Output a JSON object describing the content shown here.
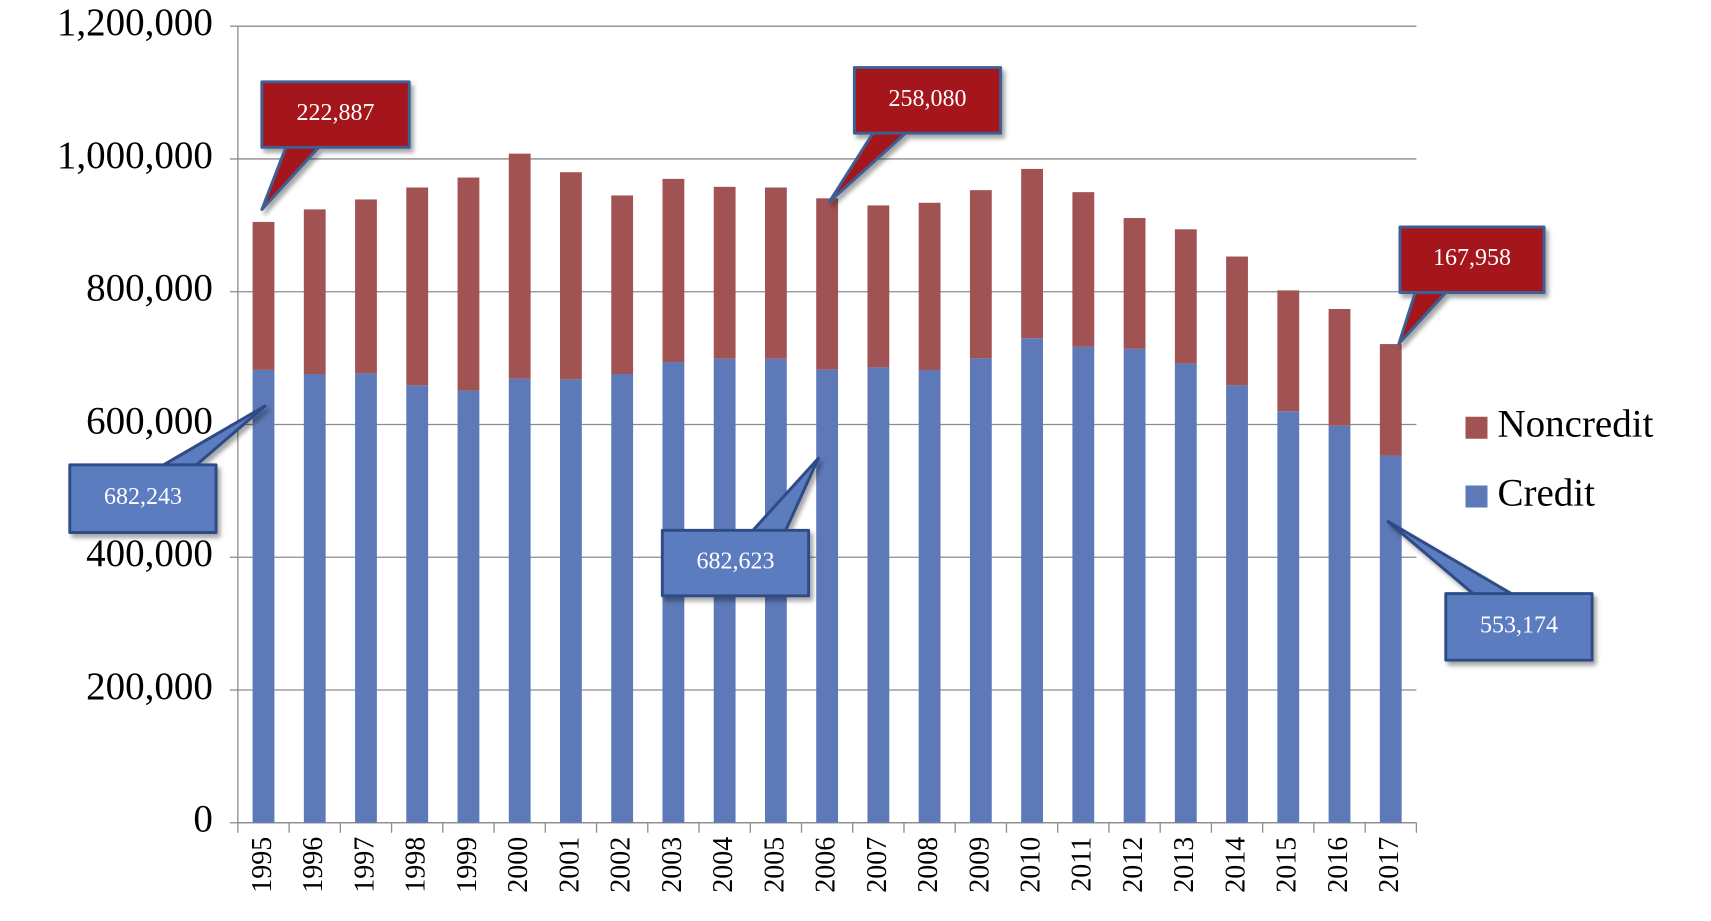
{
  "chart_data": {
    "type": "stacked_bar",
    "categories": [
      "1995",
      "1996",
      "1997",
      "1998",
      "1999",
      "2000",
      "2001",
      "2002",
      "2003",
      "2004",
      "2005",
      "2006",
      "2007",
      "2008",
      "2009",
      "2010",
      "2011",
      "2012",
      "2013",
      "2014",
      "2015",
      "2016",
      "2017"
    ],
    "series": [
      {
        "name": "Credit",
        "color": "#5e79b8",
        "values": [
          682243,
          676000,
          677000,
          659000,
          651000,
          669000,
          668000,
          676000,
          694000,
          699000,
          699000,
          682623,
          686000,
          682000,
          700000,
          730000,
          717000,
          714000,
          692000,
          659000,
          620000,
          598000,
          553174
        ],
        "value_labels": [
          "682,243",
          null,
          null,
          null,
          null,
          null,
          null,
          null,
          null,
          null,
          null,
          "682,623",
          null,
          null,
          null,
          null,
          null,
          null,
          null,
          null,
          null,
          null,
          "553,174"
        ]
      },
      {
        "name": "Noncredit",
        "color": "#a05352",
        "values": [
          222887,
          248000,
          262000,
          298000,
          321000,
          339000,
          312000,
          269000,
          276000,
          259000,
          258000,
          258080,
          244000,
          252000,
          253000,
          255000,
          233000,
          197000,
          202000,
          194000,
          182000,
          176000,
          167958
        ],
        "value_labels": [
          "222,887",
          null,
          null,
          null,
          null,
          null,
          null,
          null,
          null,
          null,
          null,
          "258,080",
          null,
          null,
          null,
          null,
          null,
          null,
          null,
          null,
          null,
          null,
          "167,958"
        ]
      }
    ],
    "ylim": [
      0,
      1200000
    ],
    "yticks": [
      0,
      {
        "value": 200000,
        "label": "200,000"
      },
      {
        "value": 400000,
        "label": "400,000"
      },
      {
        "value": 600000,
        "label": "600,000"
      },
      {
        "value": 800000,
        "label": "800,000"
      },
      {
        "value": 1000000,
        "label": "1,000,000"
      },
      {
        "value": 1200000,
        "label": "1,200,000"
      }
    ],
    "grid": true,
    "legend": "right"
  }
}
